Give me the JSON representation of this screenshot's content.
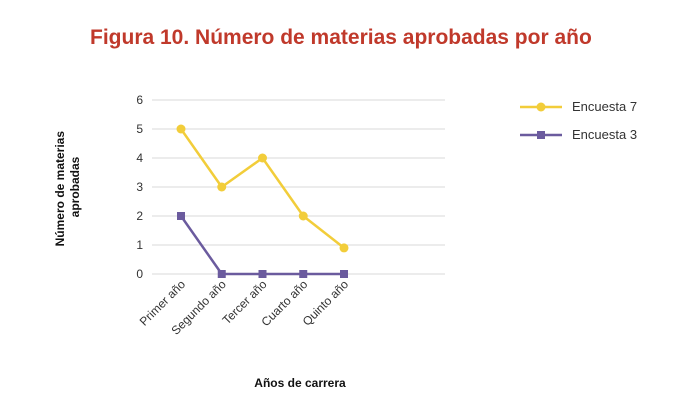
{
  "chart_data": {
    "type": "line",
    "title": "Figura 10. Número de materias aprobadas por año",
    "xlabel": "Años de carrera",
    "ylabel_lines": [
      "Número de materias",
      "aprobadas"
    ],
    "categories": [
      "Primer año",
      "Segundo año",
      "Tercer año",
      "Cuarto año",
      "Quinto año"
    ],
    "ylim": [
      0,
      6
    ],
    "yticks": [
      0,
      1,
      2,
      3,
      4,
      5,
      6
    ],
    "grid": true,
    "legend_position": "top-right",
    "series": [
      {
        "name": "Encuesta 7",
        "values": [
          5,
          3,
          4,
          2,
          0.9
        ],
        "color": "#f2cd3a",
        "marker": "circle"
      },
      {
        "name": "Encuesta 3",
        "values": [
          2,
          0,
          0,
          0,
          0
        ],
        "color": "#6b5b9e",
        "marker": "square"
      }
    ]
  },
  "colors": {
    "title": "#c0392b",
    "grid": "#d9d9d9"
  }
}
